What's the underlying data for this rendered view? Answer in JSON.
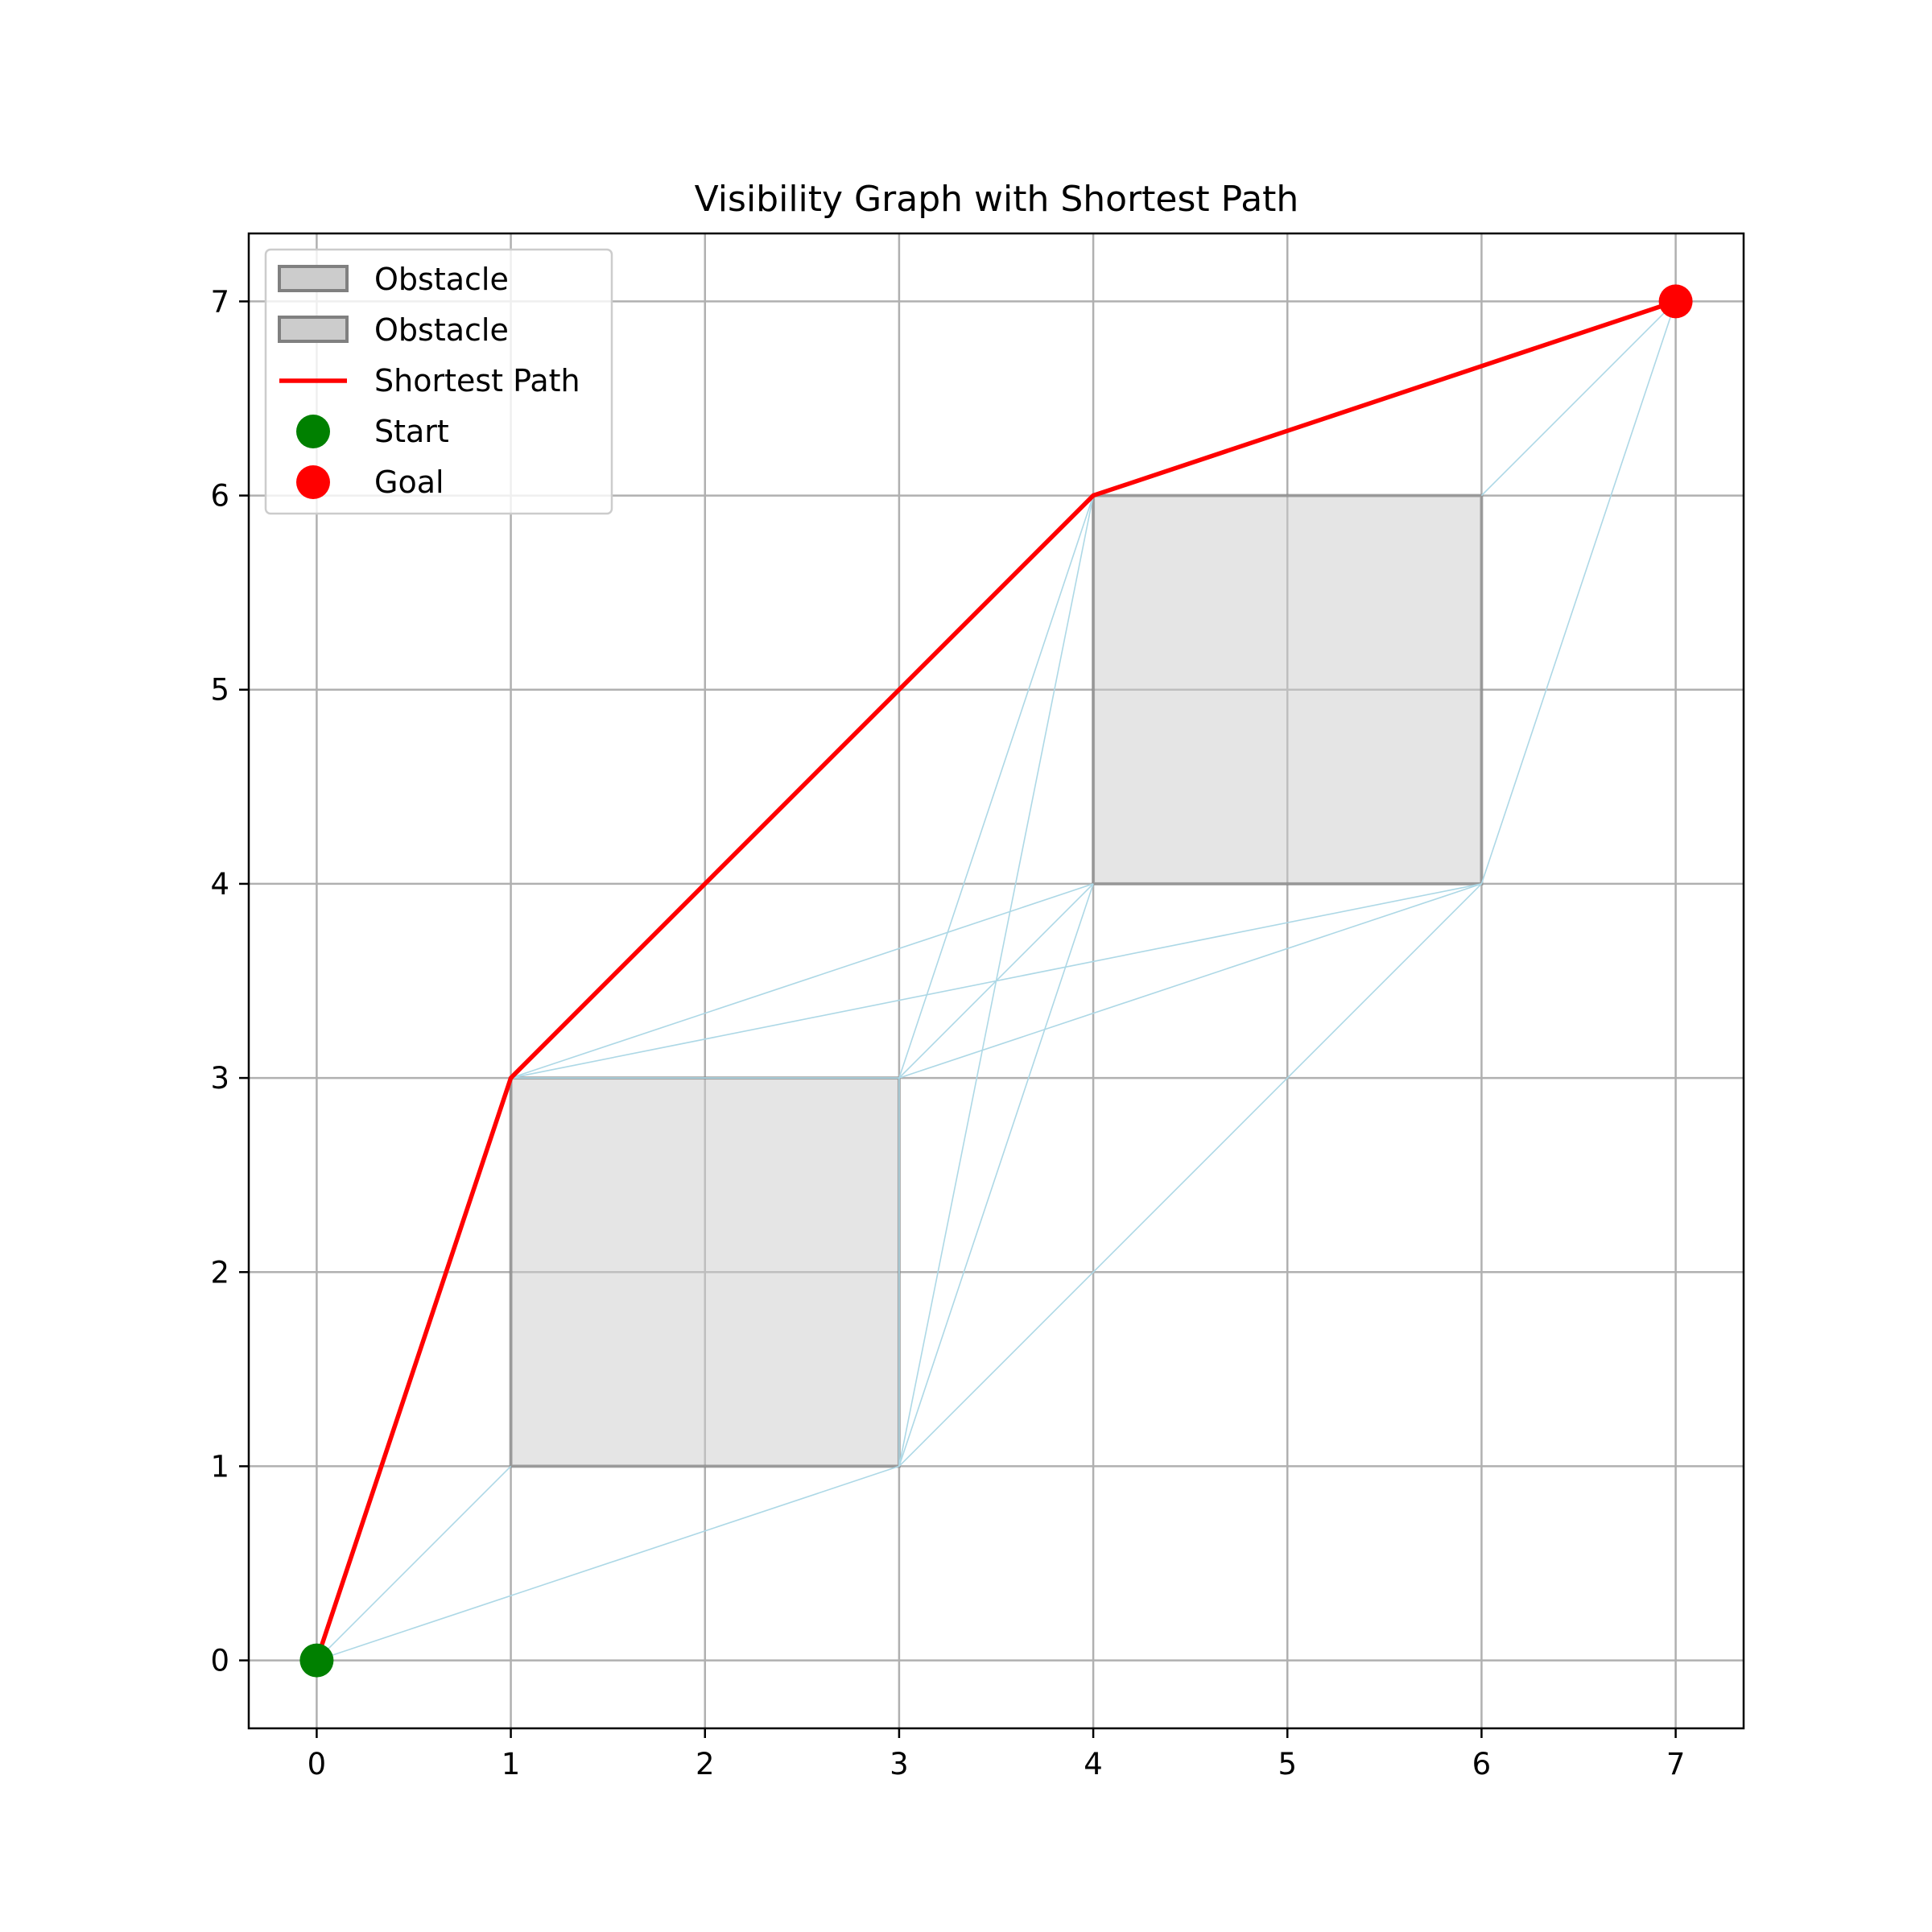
{
  "chart_data": {
    "type": "scatter",
    "title": "Visibility Graph with Shortest Path",
    "xlabel": "",
    "ylabel": "",
    "xlim": [
      -0.35,
      7.35
    ],
    "ylim": [
      -0.35,
      7.35
    ],
    "xticks": [
      0,
      1,
      2,
      3,
      4,
      5,
      6,
      7
    ],
    "yticks": [
      0,
      1,
      2,
      3,
      4,
      5,
      6,
      7
    ],
    "grid": true,
    "legend_position": "upper-left",
    "obstacles": [
      {
        "label": "Obstacle",
        "x": [
          1,
          3
        ],
        "y": [
          1,
          3
        ],
        "fill": "#cccccc",
        "edge": "#808080"
      },
      {
        "label": "Obstacle",
        "x": [
          4,
          6
        ],
        "y": [
          4,
          6
        ],
        "fill": "#cccccc",
        "edge": "#808080"
      }
    ],
    "visibility_edges": [
      [
        [
          0,
          0
        ],
        [
          1,
          1
        ]
      ],
      [
        [
          0,
          0
        ],
        [
          3,
          1
        ]
      ],
      [
        [
          1,
          3
        ],
        [
          3,
          3
        ]
      ],
      [
        [
          1,
          3
        ],
        [
          4,
          4
        ]
      ],
      [
        [
          1,
          3
        ],
        [
          6,
          4
        ]
      ],
      [
        [
          3,
          1
        ],
        [
          3,
          3
        ]
      ],
      [
        [
          3,
          1
        ],
        [
          4,
          4
        ]
      ],
      [
        [
          3,
          1
        ],
        [
          4,
          6
        ]
      ],
      [
        [
          3,
          1
        ],
        [
          6,
          4
        ]
      ],
      [
        [
          3,
          3
        ],
        [
          4,
          4
        ]
      ],
      [
        [
          3,
          3
        ],
        [
          4,
          6
        ]
      ],
      [
        [
          3,
          3
        ],
        [
          6,
          4
        ]
      ],
      [
        [
          6,
          4
        ],
        [
          7,
          7
        ]
      ],
      [
        [
          6,
          6
        ],
        [
          7,
          7
        ]
      ]
    ],
    "shortest_path": {
      "label": "Shortest Path",
      "color": "#ff0000",
      "points": [
        [
          0,
          0
        ],
        [
          1,
          3
        ],
        [
          4,
          6
        ],
        [
          7,
          7
        ]
      ]
    },
    "start": {
      "label": "Start",
      "point": [
        0,
        0
      ],
      "color": "#008000"
    },
    "goal": {
      "label": "Goal",
      "point": [
        7,
        7
      ],
      "color": "#ff0000"
    },
    "edge_color": "#add8e6",
    "legend": [
      "Obstacle",
      "Obstacle",
      "Shortest Path",
      "Start",
      "Goal"
    ]
  }
}
